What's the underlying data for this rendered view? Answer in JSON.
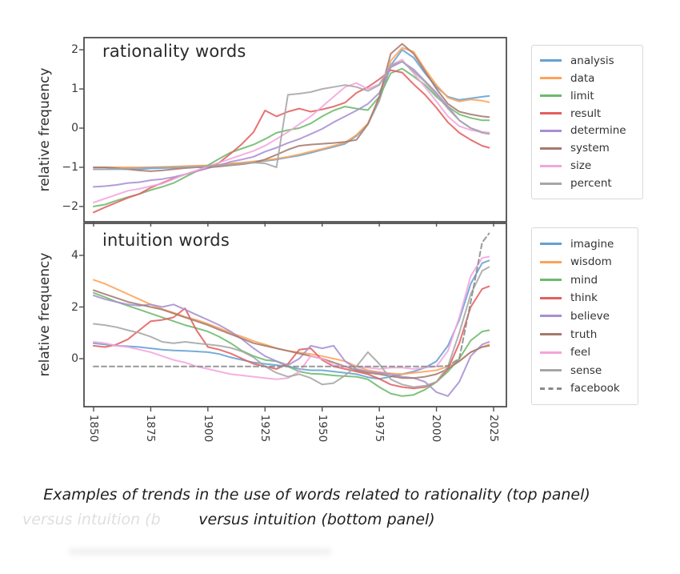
{
  "caption": {
    "line1": "Examples of trends in the use of words related to rationality (top panel)",
    "line2": "versus intuition (bottom panel)",
    "ghost": "versus intuition (b"
  },
  "chart_data": {
    "type": "line",
    "x_years": [
      1850,
      1855,
      1860,
      1865,
      1870,
      1875,
      1880,
      1885,
      1890,
      1895,
      1900,
      1905,
      1910,
      1915,
      1920,
      1925,
      1930,
      1935,
      1940,
      1945,
      1950,
      1955,
      1960,
      1965,
      1970,
      1975,
      1980,
      1985,
      1990,
      1995,
      2000,
      2005,
      2010,
      2015,
      2020,
      2023
    ],
    "x_range": [
      1845.8,
      2030.6
    ],
    "x_ticks": [
      {
        "year": 1850,
        "label": "1850"
      },
      {
        "year": 1875,
        "label": "1875"
      },
      {
        "year": 1900,
        "label": "1900"
      },
      {
        "year": 1925,
        "label": "1925"
      },
      {
        "year": 1950,
        "label": "1950"
      },
      {
        "year": 1975,
        "label": "1975"
      },
      {
        "year": 2000,
        "label": "2000"
      },
      {
        "year": 2025,
        "label": "2025"
      }
    ],
    "axis_color": "#4e4e4e",
    "panels": [
      {
        "title": "rationality words",
        "ylabel": "relative frequency",
        "y_range": [
          -2.39,
          2.31
        ],
        "y_ticks": [
          {
            "v": 2,
            "label": "2"
          },
          {
            "v": 1,
            "label": "1"
          },
          {
            "v": 0,
            "label": "0"
          },
          {
            "v": -1,
            "label": "−1"
          },
          {
            "v": -2,
            "label": "−2"
          }
        ],
        "grid": false,
        "legend_position": "outside-right",
        "series": [
          {
            "name": "analysis",
            "color": "#64a1d2",
            "dash": false,
            "values": [
              -1.05,
              -1.05,
              -1.05,
              -1.05,
              -1.05,
              -1.03,
              -1.02,
              -1.01,
              -1.0,
              -0.98,
              -0.96,
              -0.94,
              -0.92,
              -0.9,
              -0.87,
              -0.84,
              -0.8,
              -0.75,
              -0.7,
              -0.63,
              -0.55,
              -0.48,
              -0.4,
              -0.2,
              0.1,
              0.7,
              1.6,
              2.0,
              1.8,
              1.4,
              1.05,
              0.8,
              0.72,
              0.76,
              0.8,
              0.82
            ]
          },
          {
            "name": "data",
            "color": "#ffa257",
            "dash": false,
            "values": [
              -1.0,
              -1.0,
              -1.0,
              -1.0,
              -1.0,
              -1.0,
              -0.99,
              -0.98,
              -0.97,
              -0.96,
              -0.95,
              -0.93,
              -0.9,
              -0.88,
              -0.85,
              -0.82,
              -0.78,
              -0.73,
              -0.67,
              -0.6,
              -0.53,
              -0.45,
              -0.37,
              -0.17,
              0.12,
              0.75,
              1.72,
              2.05,
              1.95,
              1.5,
              1.1,
              0.78,
              0.68,
              0.73,
              0.7,
              0.66
            ]
          },
          {
            "name": "limit",
            "color": "#6cba6c",
            "dash": false,
            "values": [
              -2.0,
              -1.95,
              -1.85,
              -1.76,
              -1.68,
              -1.58,
              -1.5,
              -1.4,
              -1.25,
              -1.1,
              -0.95,
              -0.78,
              -0.62,
              -0.52,
              -0.42,
              -0.28,
              -0.12,
              -0.05,
              0.0,
              0.12,
              0.3,
              0.45,
              0.55,
              0.5,
              0.46,
              0.8,
              1.4,
              1.52,
              1.32,
              1.1,
              0.8,
              0.55,
              0.35,
              0.26,
              0.2,
              0.2
            ]
          },
          {
            "name": "result",
            "color": "#e2605f",
            "dash": false,
            "values": [
              -2.15,
              -2.02,
              -1.9,
              -1.78,
              -1.68,
              -1.52,
              -1.4,
              -1.28,
              -1.18,
              -1.1,
              -1.02,
              -0.88,
              -0.65,
              -0.4,
              -0.1,
              0.45,
              0.3,
              0.42,
              0.5,
              0.42,
              0.48,
              0.55,
              0.65,
              0.9,
              1.05,
              1.25,
              1.48,
              1.42,
              1.12,
              0.85,
              0.52,
              0.15,
              -0.12,
              -0.3,
              -0.45,
              -0.5
            ]
          },
          {
            "name": "determine",
            "color": "#a78fd2",
            "dash": false,
            "values": [
              -1.5,
              -1.48,
              -1.45,
              -1.4,
              -1.38,
              -1.33,
              -1.3,
              -1.25,
              -1.18,
              -1.1,
              -1.02,
              -0.95,
              -0.86,
              -0.8,
              -0.73,
              -0.6,
              -0.5,
              -0.38,
              -0.28,
              -0.15,
              -0.02,
              0.15,
              0.3,
              0.45,
              0.62,
              0.9,
              1.55,
              1.7,
              1.5,
              1.2,
              0.9,
              0.55,
              0.2,
              0.0,
              -0.1,
              -0.12
            ]
          },
          {
            "name": "system",
            "color": "#a57a6e",
            "dash": false,
            "values": [
              -1.0,
              -1.0,
              -1.02,
              -1.05,
              -1.08,
              -1.1,
              -1.08,
              -1.05,
              -1.02,
              -1.0,
              -1.0,
              -0.98,
              -0.95,
              -0.92,
              -0.88,
              -0.8,
              -0.68,
              -0.55,
              -0.45,
              -0.42,
              -0.4,
              -0.38,
              -0.35,
              -0.3,
              0.1,
              0.8,
              1.9,
              2.15,
              1.9,
              1.45,
              1.0,
              0.62,
              0.42,
              0.35,
              0.3,
              0.28
            ]
          },
          {
            "name": "size",
            "color": "#f2a5de",
            "dash": false,
            "values": [
              -1.9,
              -1.8,
              -1.7,
              -1.6,
              -1.55,
              -1.48,
              -1.42,
              -1.3,
              -1.18,
              -1.08,
              -0.98,
              -0.88,
              -0.78,
              -0.68,
              -0.58,
              -0.45,
              -0.28,
              -0.1,
              0.1,
              0.3,
              0.55,
              0.8,
              1.05,
              1.15,
              1.0,
              1.12,
              1.6,
              1.75,
              1.4,
              1.05,
              0.68,
              0.3,
              0.05,
              -0.05,
              -0.1,
              -0.12
            ]
          },
          {
            "name": "percent",
            "color": "#a6a6a6",
            "dash": false,
            "values": [
              -1.05,
              -1.05,
              -1.04,
              -1.03,
              -1.02,
              -1.0,
              -1.0,
              -1.0,
              -0.99,
              -0.98,
              -0.97,
              -0.95,
              -0.93,
              -0.9,
              -0.88,
              -0.9,
              -1.0,
              0.85,
              0.88,
              0.92,
              1.0,
              1.05,
              1.1,
              1.05,
              0.95,
              1.1,
              1.6,
              1.7,
              1.45,
              1.18,
              0.85,
              0.5,
              0.2,
              0.0,
              -0.12,
              -0.15
            ]
          }
        ]
      },
      {
        "title": "intuition words",
        "ylabel": "relative frequency",
        "y_range": [
          -1.86,
          5.24
        ],
        "y_ticks": [
          {
            "v": 4,
            "label": "4"
          },
          {
            "v": 2,
            "label": "2"
          },
          {
            "v": 0,
            "label": "0"
          }
        ],
        "grid": false,
        "legend_position": "outside-right",
        "series": [
          {
            "name": "imagine",
            "color": "#64a1d2",
            "dash": false,
            "values": [
              0.6,
              0.55,
              0.5,
              0.48,
              0.45,
              0.4,
              0.35,
              0.32,
              0.3,
              0.28,
              0.25,
              0.18,
              0.05,
              -0.05,
              -0.15,
              -0.2,
              -0.25,
              -0.3,
              -0.4,
              -0.45,
              -0.45,
              -0.5,
              -0.55,
              -0.6,
              -0.72,
              -0.78,
              -0.7,
              -0.6,
              -0.5,
              -0.35,
              -0.1,
              0.5,
              1.5,
              2.9,
              3.7,
              3.8
            ]
          },
          {
            "name": "wisdom",
            "color": "#ffa257",
            "dash": false,
            "values": [
              3.05,
              2.9,
              2.7,
              2.5,
              2.3,
              2.1,
              1.92,
              1.78,
              1.62,
              1.5,
              1.35,
              1.18,
              1.0,
              0.85,
              0.68,
              0.55,
              0.4,
              0.3,
              0.24,
              0.18,
              0.1,
              0.0,
              -0.1,
              -0.3,
              -0.45,
              -0.52,
              -0.57,
              -0.6,
              -0.55,
              -0.5,
              -0.45,
              -0.3,
              -0.1,
              0.25,
              0.45,
              0.55
            ]
          },
          {
            "name": "mind",
            "color": "#6cba6c",
            "dash": false,
            "values": [
              2.55,
              2.38,
              2.2,
              2.05,
              1.9,
              1.75,
              1.6,
              1.45,
              1.3,
              1.18,
              1.05,
              0.85,
              0.6,
              0.3,
              0.1,
              -0.05,
              -0.1,
              -0.3,
              -0.5,
              -0.58,
              -0.6,
              -0.65,
              -0.68,
              -0.7,
              -0.8,
              -1.1,
              -1.35,
              -1.45,
              -1.4,
              -1.2,
              -0.9,
              -0.5,
              0.0,
              0.7,
              1.05,
              1.1
            ]
          },
          {
            "name": "think",
            "color": "#e2605f",
            "dash": false,
            "values": [
              0.5,
              0.45,
              0.55,
              0.75,
              1.1,
              1.45,
              1.5,
              1.6,
              1.95,
              1.1,
              0.45,
              0.35,
              0.2,
              0.0,
              -0.2,
              -0.3,
              -0.4,
              -0.2,
              0.35,
              0.4,
              -0.05,
              -0.3,
              -0.4,
              -0.5,
              -0.6,
              -0.78,
              -1.0,
              -1.1,
              -1.15,
              -1.1,
              -0.9,
              -0.4,
              0.6,
              2.0,
              2.7,
              2.8
            ]
          },
          {
            "name": "believe",
            "color": "#a78fd2",
            "dash": false,
            "values": [
              2.45,
              2.3,
              2.2,
              2.1,
              2.05,
              2.1,
              2.0,
              2.1,
              1.9,
              1.7,
              1.5,
              1.3,
              1.05,
              0.75,
              0.4,
              0.1,
              -0.1,
              -0.25,
              0.0,
              0.5,
              0.4,
              0.5,
              -0.1,
              -0.4,
              -0.5,
              -0.55,
              -0.6,
              -0.7,
              -0.75,
              -0.9,
              -1.3,
              -1.45,
              -0.9,
              0.1,
              0.55,
              0.65
            ]
          },
          {
            "name": "truth",
            "color": "#a57a6e",
            "dash": false,
            "values": [
              2.65,
              2.5,
              2.35,
              2.2,
              2.1,
              2.0,
              1.9,
              1.75,
              1.6,
              1.45,
              1.3,
              1.12,
              0.95,
              0.78,
              0.6,
              0.5,
              0.4,
              0.3,
              0.2,
              0.1,
              0.0,
              -0.15,
              -0.3,
              -0.45,
              -0.55,
              -0.6,
              -0.68,
              -0.75,
              -0.75,
              -0.7,
              -0.6,
              -0.4,
              -0.1,
              0.25,
              0.45,
              0.5
            ]
          },
          {
            "name": "feel",
            "color": "#f2a5de",
            "dash": false,
            "values": [
              0.65,
              0.6,
              0.5,
              0.45,
              0.35,
              0.25,
              0.1,
              -0.05,
              -0.15,
              -0.3,
              -0.4,
              -0.5,
              -0.6,
              -0.65,
              -0.7,
              -0.75,
              -0.8,
              -0.75,
              -0.5,
              0.1,
              0.0,
              -0.25,
              -0.3,
              -0.3,
              -0.35,
              -0.4,
              -0.35,
              -0.35,
              -0.4,
              -0.35,
              -0.3,
              0.3,
              1.6,
              3.2,
              3.9,
              3.95
            ]
          },
          {
            "name": "sense",
            "color": "#a6a6a6",
            "dash": false,
            "values": [
              1.35,
              1.3,
              1.22,
              1.1,
              1.0,
              0.85,
              0.65,
              0.6,
              0.65,
              0.6,
              0.55,
              0.5,
              0.42,
              0.28,
              0.05,
              -0.3,
              -0.55,
              -0.7,
              -0.6,
              -0.75,
              -1.0,
              -0.95,
              -0.65,
              -0.3,
              0.25,
              -0.2,
              -0.8,
              -1.0,
              -1.1,
              -1.05,
              -0.9,
              -0.3,
              1.0,
              2.5,
              3.4,
              3.55
            ]
          },
          {
            "name": "facebook",
            "color": "#8a8a8a",
            "dash": true,
            "values": [
              -0.3,
              -0.3,
              -0.3,
              -0.3,
              -0.3,
              -0.3,
              -0.3,
              -0.3,
              -0.3,
              -0.3,
              -0.3,
              -0.3,
              -0.3,
              -0.3,
              -0.3,
              -0.3,
              -0.3,
              -0.3,
              -0.3,
              -0.3,
              -0.3,
              -0.3,
              -0.3,
              -0.3,
              -0.3,
              -0.3,
              -0.3,
              -0.3,
              -0.3,
              -0.3,
              -0.3,
              -0.28,
              0.0,
              2.2,
              4.5,
              4.85
            ]
          }
        ]
      }
    ]
  }
}
